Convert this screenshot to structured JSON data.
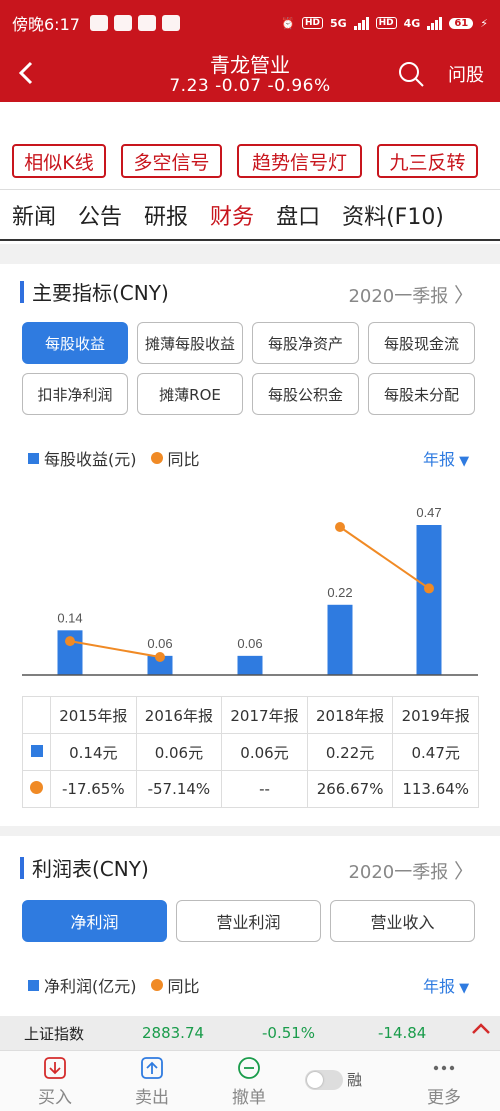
{
  "status": {
    "time": "傍晚6:17",
    "network_5g": "5G",
    "network_4g": "4G",
    "hd": "HD",
    "battery": "61"
  },
  "header": {
    "title": "青龙管业",
    "quote": "7.23  -0.07  -0.96%",
    "ask": "问股"
  },
  "signals": [
    "相似K线",
    "多空信号",
    "趋势信号灯",
    "九三反转"
  ],
  "tabs": [
    "新闻",
    "公告",
    "研报",
    "财务",
    "盘口",
    "资料(F10)"
  ],
  "active_tab": "财务",
  "main_indicators": {
    "title": "主要指标(CNY)",
    "period": "2020一季报",
    "pills": [
      "每股收益",
      "摊薄每股收益",
      "每股净资产",
      "每股现金流",
      "扣非净利润",
      "摊薄ROE",
      "每股公积金",
      "每股未分配"
    ],
    "active_pill": "每股收益",
    "legend_bar": "每股收益(元)",
    "legend_line": "同比",
    "year_select": "年报"
  },
  "chart_data": {
    "type": "bar",
    "categories": [
      "2015年报",
      "2016年报",
      "2017年报",
      "2018年报",
      "2019年报"
    ],
    "series": [
      {
        "name": "每股收益(元)",
        "type": "bar",
        "values": [
          0.14,
          0.06,
          0.06,
          0.22,
          0.47
        ],
        "color": "#2f7be0"
      },
      {
        "name": "同比",
        "type": "line",
        "values": [
          -17.65,
          -57.14,
          null,
          266.67,
          113.64
        ],
        "color": "#f08a25"
      }
    ],
    "bar_labels": [
      "0.14",
      "0.06",
      "0.06",
      "0.22",
      "0.47"
    ],
    "ylim": [
      0,
      0.47
    ],
    "grid": false
  },
  "table": {
    "headers": [
      "2015年报",
      "2016年报",
      "2017年报",
      "2018年报",
      "2019年报"
    ],
    "eps": [
      "0.14元",
      "0.06元",
      "0.06元",
      "0.22元",
      "0.47元"
    ],
    "yoy": [
      "-17.65%",
      "-57.14%",
      "--",
      "266.67%",
      "113.64%"
    ]
  },
  "profit": {
    "title": "利润表(CNY)",
    "period": "2020一季报",
    "buttons": [
      "净利润",
      "营业利润",
      "营业收入"
    ],
    "active": "净利润",
    "legend_bar": "净利润(亿元)",
    "legend_line": "同比",
    "year_select": "年报"
  },
  "ticker": {
    "name": "上证指数",
    "price": "2883.74",
    "pct": "-0.51%",
    "chg": "-14.84"
  },
  "bottom_nav": [
    "买入",
    "卖出",
    "撤单",
    "融",
    "更多"
  ],
  "colors": {
    "brand": "#c8151d",
    "accent": "#2f7be0",
    "line": "#f08a25",
    "up": "#d42b2b",
    "down": "#1a9c4b"
  }
}
